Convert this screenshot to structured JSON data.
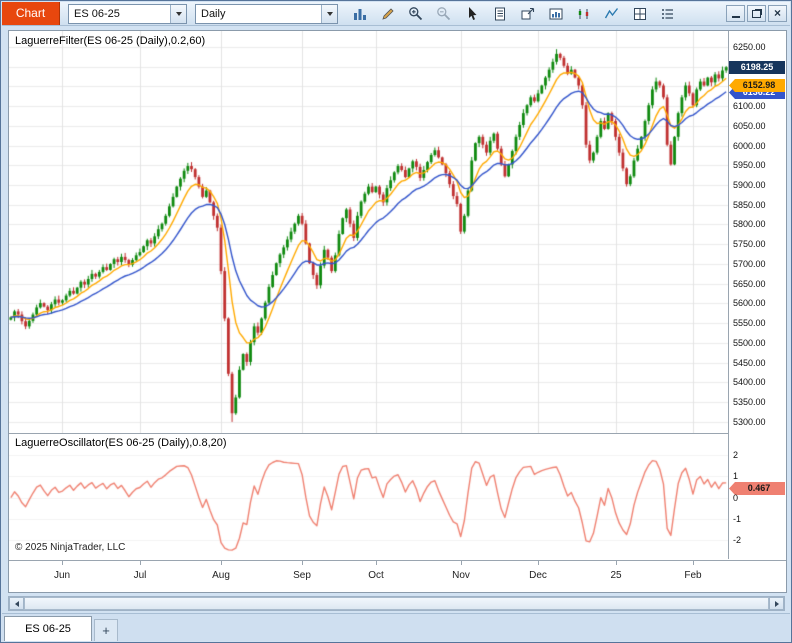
{
  "titlebar": {
    "chart_button": "Chart",
    "instrument": "ES 06-25",
    "interval": "Daily",
    "toolbar_icons": [
      "chart-style-icon",
      "drawing-tools-icon",
      "zoom-in-icon",
      "zoom-out-icon",
      "cursor-icon",
      "print-preview-icon",
      "send-to-window-icon",
      "chart-panel-icon",
      "data-series-icon",
      "indicator-line-icon",
      "grid-split-icon",
      "properties-icon"
    ],
    "window_controls": [
      "minimize",
      "restore",
      "close"
    ]
  },
  "chart_data": {
    "type": "candlestick",
    "price_panel": {
      "label": "LaguerreFilter(ES 06-25 (Daily),0.2,60)",
      "ylim": [
        5272,
        6290
      ],
      "axis_ticks": [
        "6250.00",
        "6200.00",
        "6150.00",
        "6100.00",
        "6050.00",
        "6000.00",
        "5950.00",
        "5900.00",
        "5850.00",
        "5800.00",
        "5750.00",
        "5700.00",
        "5650.00",
        "5600.00",
        "5550.00",
        "5500.00",
        "5450.00",
        "5400.00",
        "5350.00",
        "5300.00"
      ],
      "closes": [
        5565,
        5580,
        5572,
        5555,
        5542,
        5556,
        5572,
        5590,
        5601,
        5592,
        5583,
        5598,
        5610,
        5602,
        5608,
        5620,
        5632,
        5625,
        5640,
        5655,
        5648,
        5662,
        5675,
        5668,
        5680,
        5692,
        5685,
        5700,
        5712,
        5705,
        5718,
        5710,
        5698,
        5710,
        5722,
        5730,
        5745,
        5760,
        5752,
        5770,
        5788,
        5802,
        5822,
        5846,
        5870,
        5896,
        5916,
        5936,
        5948,
        5940,
        5920,
        5896,
        5870,
        5886,
        5856,
        5822,
        5792,
        5682,
        5562,
        5422,
        5322,
        5362,
        5432,
        5472,
        5452,
        5502,
        5542,
        5526,
        5562,
        5602,
        5642,
        5672,
        5702,
        5724,
        5742,
        5762,
        5782,
        5802,
        5822,
        5802,
        5752,
        5702,
        5672,
        5646,
        5696,
        5736,
        5716,
        5682,
        5722,
        5776,
        5816,
        5838,
        5802,
        5766,
        5822,
        5858,
        5878,
        5896,
        5882,
        5896,
        5876,
        5856,
        5892,
        5912,
        5932,
        5948,
        5938,
        5920,
        5942,
        5960,
        5946,
        5918,
        5938,
        5958,
        5976,
        5988,
        5970,
        5952,
        5930,
        5902,
        5872,
        5852,
        5782,
        5822,
        5886,
        5962,
        6006,
        6022,
        6002,
        5982,
        6012,
        6030,
        5992,
        5952,
        5922,
        5952,
        5986,
        6022,
        6052,
        6082,
        6102,
        6122,
        6112,
        6132,
        6152,
        6172,
        6192,
        6212,
        6232,
        6222,
        6202,
        6182,
        6192,
        6172,
        6152,
        6102,
        6002,
        5962,
        5982,
        6022,
        6062,
        6042,
        6082,
        6062,
        6022,
        5982,
        5942,
        5902,
        5922,
        5962,
        5992,
        6022,
        6062,
        6102,
        6142,
        6162,
        6152,
        6122,
        6002,
        5952,
        6022,
        6082,
        6122,
        6152,
        6132,
        6102,
        6142,
        6162,
        6152,
        6172,
        6160,
        6180,
        6170,
        6190,
        6198.25
      ],
      "wick_overrides": [
        {
          "index": 60,
          "low": 5300
        },
        {
          "index": 148,
          "high": 6244
        }
      ],
      "up_color": "#0f8a0f",
      "down_color": "#c03030"
    },
    "overlays": {
      "orange_alpha": 0.22,
      "blue_alpha": 0.1,
      "orange_color": "#ffaa00",
      "blue_color": "#3355cc"
    },
    "osc_panel": {
      "label": "LaguerreOscillator(ES 06-25 (Daily),0.8,20)",
      "ylim": [
        -2.9,
        3.0
      ],
      "axis_ticks": [
        "2",
        "1",
        "0",
        "-1",
        "-2"
      ],
      "line_color": "#f08272",
      "alpha": 0.2,
      "scale": 110,
      "amp": 2.5
    },
    "x_axis": {
      "months": [
        {
          "label": "Jun",
          "index": 14
        },
        {
          "label": "Jul",
          "index": 35
        },
        {
          "label": "Aug",
          "index": 57
        },
        {
          "label": "Sep",
          "index": 79
        },
        {
          "label": "Oct",
          "index": 99
        },
        {
          "label": "Nov",
          "index": 122
        },
        {
          "label": "Dec",
          "index": 143
        },
        {
          "label": "25",
          "index": 164
        },
        {
          "label": "Feb",
          "index": 185
        }
      ]
    },
    "badges": {
      "last_price": "6198.25",
      "last_price_bg": "#16355c",
      "last_price_fg": "#ffffff",
      "orange_value": "6152.98",
      "orange_bg": "#ffaa00",
      "orange_fg": "#1a1a1a",
      "blue_bg": "#3355cc",
      "blue_fg": "#ffffff",
      "osc_value": "0.467",
      "osc_bg": "#ef8071",
      "osc_fg": "#1a1a1a"
    },
    "copyright": "© 2025 NinjaTrader, LLC"
  },
  "tabs": {
    "active": "ES 06-25",
    "add": "+"
  }
}
